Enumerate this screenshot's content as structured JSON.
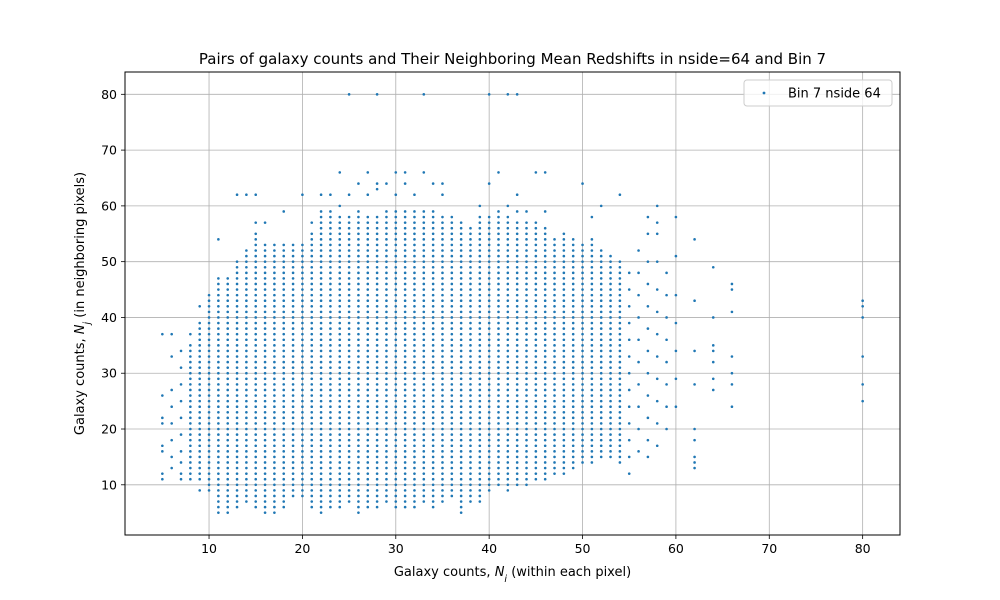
{
  "chart_data": {
    "type": "scatter",
    "title": "Pairs of galaxy counts and Their Neighboring Mean Redshifts in nside=64 and Bin 7",
    "xlabel": "Galaxy counts, N_i (within each pixel)",
    "ylabel": "Galaxy counts, N_j (in neighboring pixels)",
    "xlim": [
      1,
      84
    ],
    "ylim": [
      1,
      84
    ],
    "xticks": [
      10,
      20,
      30,
      40,
      50,
      60,
      70,
      80
    ],
    "yticks": [
      10,
      20,
      30,
      40,
      50,
      60,
      70,
      80
    ],
    "grid": true,
    "legend_position": "top-right",
    "series": [
      {
        "name": "Bin 7 nside 64",
        "color": "#1f77b4",
        "columns": [
          {
            "x": 5,
            "y": [
              11,
              12,
              16,
              17,
              21,
              22,
              26,
              37
            ]
          },
          {
            "x": 6,
            "y": [
              13,
              15,
              18,
              21,
              24,
              27,
              33,
              37
            ]
          },
          {
            "x": 7,
            "y": [
              11,
              12,
              14,
              16,
              19,
              22,
              25,
              28,
              31,
              34
            ]
          },
          {
            "x": 8,
            "y": [
              11,
              12,
              13,
              14,
              15,
              16,
              17,
              18,
              19,
              20,
              21,
              22,
              23,
              24,
              25,
              26,
              27,
              28,
              29,
              30,
              31,
              32,
              33,
              34,
              35,
              37
            ]
          },
          {
            "x": 9,
            "y": [
              9,
              11,
              12,
              13,
              14,
              15,
              16,
              17,
              18,
              19,
              20,
              21,
              22,
              23,
              24,
              25,
              26,
              27,
              28,
              29,
              30,
              31,
              32,
              33,
              34,
              35,
              36,
              37,
              38,
              39,
              42
            ]
          },
          {
            "x": 10,
            "y_range": [
              9,
              44
            ]
          },
          {
            "x": 11,
            "y_range": [
              5,
              47
            ],
            "extra": [
              54
            ]
          },
          {
            "x": 12,
            "y_range": [
              5,
              47
            ]
          },
          {
            "x": 13,
            "y_range": [
              6,
              50
            ],
            "extra": [
              62
            ]
          },
          {
            "x": 14,
            "y_range": [
              7,
              52
            ],
            "extra": [
              62
            ]
          },
          {
            "x": 15,
            "y_range": [
              6,
              54
            ],
            "extra": [
              55,
              57,
              62
            ]
          },
          {
            "x": 16,
            "y_range": [
              5,
              53
            ],
            "extra": [
              57
            ]
          },
          {
            "x": 17,
            "y_range": [
              5,
              53
            ]
          },
          {
            "x": 18,
            "y_range": [
              6,
              53
            ],
            "extra": [
              59
            ]
          },
          {
            "x": 19,
            "y_range": [
              8,
              53
            ]
          },
          {
            "x": 20,
            "y_range": [
              8,
              53
            ],
            "extra": [
              62
            ]
          },
          {
            "x": 21,
            "y_range": [
              6,
              55
            ],
            "extra": [
              57
            ]
          },
          {
            "x": 22,
            "y_range": [
              5,
              58
            ],
            "extra": [
              59,
              62
            ]
          },
          {
            "x": 23,
            "y_range": [
              6,
              58
            ],
            "extra": [
              59,
              62
            ]
          },
          {
            "x": 24,
            "y_range": [
              6,
              58
            ],
            "extra": [
              60,
              66
            ]
          },
          {
            "x": 25,
            "y_range": [
              7,
              58
            ],
            "extra": [
              62,
              80
            ]
          },
          {
            "x": 26,
            "y_range": [
              5,
              58
            ],
            "extra": [
              59,
              64
            ]
          },
          {
            "x": 27,
            "y_range": [
              6,
              58
            ],
            "extra": [
              62,
              66
            ]
          },
          {
            "x": 28,
            "y_range": [
              6,
              58
            ],
            "extra": [
              63,
              64,
              80
            ]
          },
          {
            "x": 29,
            "y_range": [
              7,
              58
            ],
            "extra": [
              59,
              64
            ]
          },
          {
            "x": 30,
            "y_range": [
              6,
              58
            ],
            "extra": [
              59,
              62,
              66
            ]
          },
          {
            "x": 31,
            "y_range": [
              6,
              58
            ],
            "extra": [
              59,
              64,
              66
            ]
          },
          {
            "x": 32,
            "y_range": [
              6,
              58
            ],
            "extra": [
              59,
              62
            ]
          },
          {
            "x": 33,
            "y_range": [
              7,
              58
            ],
            "extra": [
              59,
              66,
              80
            ]
          },
          {
            "x": 34,
            "y_range": [
              6,
              58
            ],
            "extra": [
              59,
              64
            ]
          },
          {
            "x": 35,
            "y_range": [
              7,
              58
            ],
            "extra": [
              62,
              64
            ]
          },
          {
            "x": 36,
            "y_range": [
              8,
              58
            ]
          },
          {
            "x": 37,
            "y_range": [
              5,
              57
            ]
          },
          {
            "x": 38,
            "y_range": [
              7,
              56
            ]
          },
          {
            "x": 39,
            "y_range": [
              7,
              58
            ],
            "extra": [
              60
            ]
          },
          {
            "x": 40,
            "y_range": [
              9,
              58
            ],
            "extra": [
              64,
              80
            ]
          },
          {
            "x": 41,
            "y_range": [
              10,
              58
            ],
            "extra": [
              59,
              66
            ]
          },
          {
            "x": 42,
            "y_range": [
              9,
              58
            ],
            "extra": [
              60,
              80
            ]
          },
          {
            "x": 43,
            "y_range": [
              10,
              57
            ],
            "extra": [
              59,
              62,
              80
            ]
          },
          {
            "x": 44,
            "y_range": [
              10,
              57
            ],
            "extra": [
              59
            ]
          },
          {
            "x": 45,
            "y_range": [
              11,
              57
            ],
            "extra": [
              66
            ]
          },
          {
            "x": 46,
            "y_range": [
              11,
              56
            ],
            "extra": [
              59,
              66
            ]
          },
          {
            "x": 47,
            "y_range": [
              12,
              54
            ]
          },
          {
            "x": 48,
            "y_range": [
              12,
              55
            ]
          },
          {
            "x": 49,
            "y_range": [
              13,
              54
            ]
          },
          {
            "x": 50,
            "y_range": [
              14,
              53
            ],
            "extra": [
              64
            ]
          },
          {
            "x": 51,
            "y_range": [
              14,
              54
            ],
            "extra": [
              58
            ]
          },
          {
            "x": 52,
            "y_range": [
              15,
              52
            ],
            "extra": [
              60
            ]
          },
          {
            "x": 53,
            "y_range": [
              15,
              51
            ]
          },
          {
            "x": 54,
            "y_range": [
              14,
              50
            ],
            "extra": [
              62
            ]
          },
          {
            "x": 55,
            "y": [
              12,
              15,
              18,
              21,
              24,
              27,
              30,
              33,
              36,
              39,
              42,
              45,
              48
            ]
          },
          {
            "x": 56,
            "y": [
              16,
              20,
              24,
              28,
              32,
              36,
              40,
              44,
              48,
              52
            ]
          },
          {
            "x": 57,
            "y": [
              15,
              18,
              22,
              26,
              30,
              34,
              38,
              42,
              46,
              50,
              55,
              58
            ]
          },
          {
            "x": 58,
            "y": [
              17,
              21,
              25,
              29,
              33,
              37,
              41,
              45,
              50,
              55,
              57,
              60
            ]
          },
          {
            "x": 59,
            "y": [
              20,
              24,
              28,
              32,
              36,
              40,
              44,
              48
            ]
          },
          {
            "x": 60,
            "y": [
              24,
              29,
              34,
              39,
              44,
              51,
              58
            ]
          },
          {
            "x": 62,
            "y": [
              13,
              14,
              15,
              18,
              20,
              28,
              34,
              43,
              54
            ]
          },
          {
            "x": 64,
            "y": [
              27,
              29,
              32,
              34,
              35,
              40,
              49
            ]
          },
          {
            "x": 66,
            "y": [
              24,
              28,
              30,
              33,
              41,
              45,
              46
            ]
          },
          {
            "x": 80,
            "y": [
              25,
              28,
              33,
              40,
              42,
              43
            ]
          }
        ]
      }
    ]
  }
}
